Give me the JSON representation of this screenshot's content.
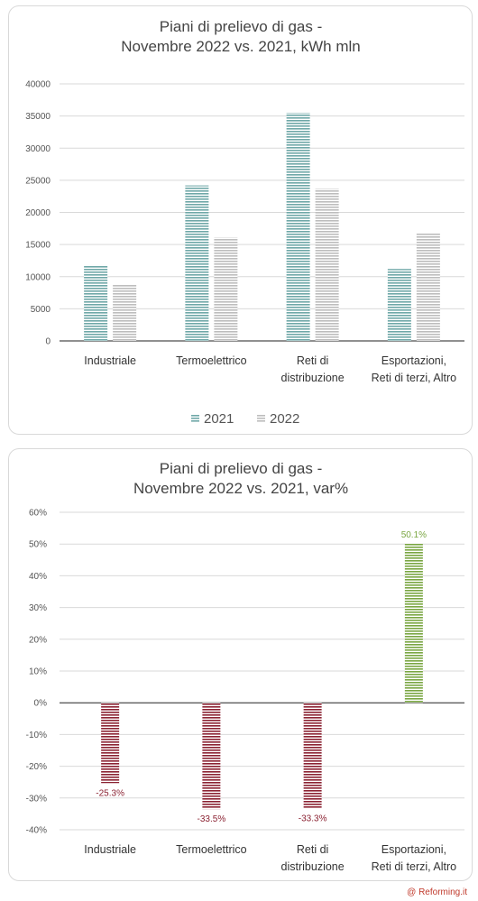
{
  "credit": "@ Reforming.it",
  "colors": {
    "s2021": "#6fa8a8",
    "s2022": "#bdbdbd",
    "negative": "#8b2232",
    "positive": "#7aa642",
    "grid": "#d9d9d9",
    "axis": "#222222"
  },
  "chart_data": [
    {
      "type": "bar",
      "title": [
        "Piani di prelievo di gas  -",
        "Novembre  2022 vs. 2021, kWh mln"
      ],
      "categories": [
        [
          "Industriale"
        ],
        [
          "Termoelettrico"
        ],
        [
          "Reti di",
          "distribuzione"
        ],
        [
          "Esportazioni,",
          "Reti di terzi, Altro"
        ]
      ],
      "series": [
        {
          "name": "2021",
          "values": [
            11800,
            24200,
            35500,
            11200
          ]
        },
        {
          "name": "2022",
          "values": [
            8700,
            16100,
            23700,
            16800
          ]
        }
      ],
      "yticks": [
        "0",
        "5000",
        "10000",
        "15000",
        "20000",
        "25000",
        "30000",
        "35000",
        "40000"
      ],
      "ylim": [
        0,
        40000
      ],
      "grid": true,
      "legend": "bottom"
    },
    {
      "type": "bar",
      "title": [
        "Piani di prelievo di gas  -",
        "Novembre  2022 vs. 2021, var%"
      ],
      "categories": [
        [
          "Industriale"
        ],
        [
          "Termoelettrico"
        ],
        [
          "Reti di",
          "distribuzione"
        ],
        [
          "Esportazioni,",
          "Reti di terzi, Altro"
        ]
      ],
      "values": [
        -25.3,
        -33.5,
        -33.3,
        50.1
      ],
      "data_labels": [
        "-25.3%",
        "-33.5%",
        "-33.3%",
        "50.1%"
      ],
      "yticks": [
        "-40%",
        "-30%",
        "-20%",
        "-10%",
        "0%",
        "10%",
        "20%",
        "30%",
        "40%",
        "50%",
        "60%"
      ],
      "ylim": [
        -40,
        60
      ],
      "grid": true
    }
  ]
}
